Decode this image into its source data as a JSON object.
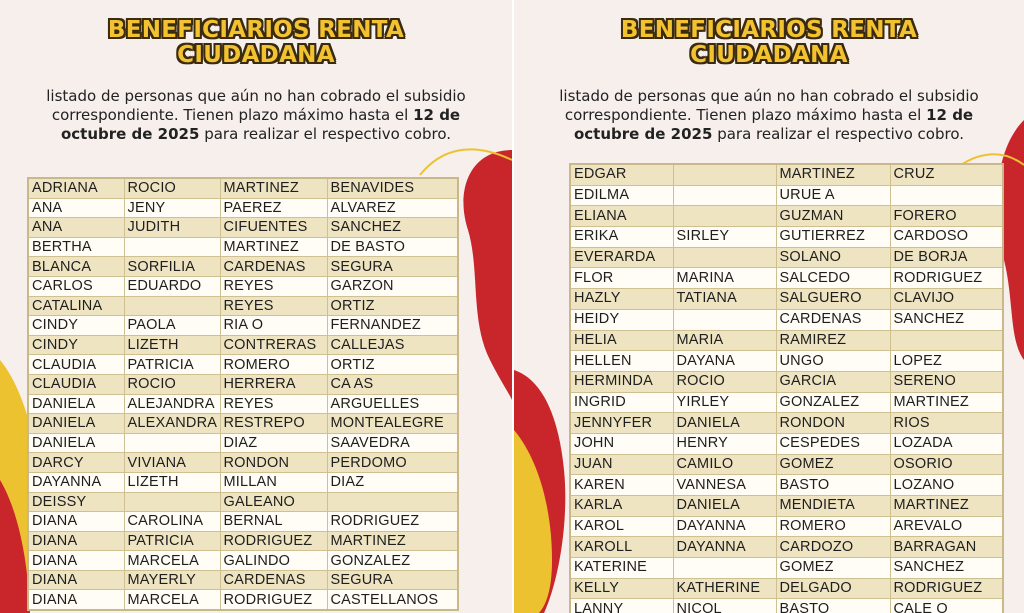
{
  "left_panel": {
    "title_line1": "BENEFICIARIOS RENTA",
    "title_line2": "CIUDADANA",
    "subtitle_pre": "listado de personas que aún no han cobrado el subsidio correspondiente. Tienen plazo máximo hasta el ",
    "subtitle_bold": "12 de octubre de 2025",
    "subtitle_post": " para realizar el respectivo cobro.",
    "rows": [
      [
        "ADRIANA",
        "ROCIO",
        "MARTINEZ",
        "BENAVIDES"
      ],
      [
        "ANA",
        "JENY",
        "PAEREZ",
        "ALVAREZ"
      ],
      [
        "ANA",
        "JUDITH",
        "CIFUENTES",
        "SANCHEZ"
      ],
      [
        "BERTHA",
        "",
        "MARTINEZ",
        "DE BASTO"
      ],
      [
        "BLANCA",
        "SORFILIA",
        "CARDENAS",
        "SEGURA"
      ],
      [
        "CARLOS",
        "EDUARDO",
        "REYES",
        "GARZON"
      ],
      [
        "CATALINA",
        "",
        "REYES",
        "ORTIZ"
      ],
      [
        "CINDY",
        "PAOLA",
        "RIA O",
        "FERNANDEZ"
      ],
      [
        "CINDY",
        "LIZETH",
        "CONTRERAS",
        "CALLEJAS"
      ],
      [
        "CLAUDIA",
        "PATRICIA",
        "ROMERO",
        "ORTIZ"
      ],
      [
        "CLAUDIA",
        "ROCIO",
        "HERRERA",
        "CA AS"
      ],
      [
        "DANIELA",
        "ALEJANDRA",
        "REYES",
        "ARGUELLES"
      ],
      [
        "DANIELA",
        "ALEXANDRA",
        "RESTREPO",
        "MONTEALEGRE"
      ],
      [
        "DANIELA",
        "",
        "DIAZ",
        "SAAVEDRA"
      ],
      [
        "DARCY",
        "VIVIANA",
        "RONDON",
        "PERDOMO"
      ],
      [
        "DAYANNA",
        "LIZETH",
        "MILLAN",
        "DIAZ"
      ],
      [
        "DEISSY",
        "",
        "GALEANO",
        ""
      ],
      [
        "DIANA",
        "CAROLINA",
        "BERNAL",
        "RODRIGUEZ"
      ],
      [
        "DIANA",
        "PATRICIA",
        "RODRIGUEZ",
        "MARTINEZ"
      ],
      [
        "DIANA",
        "MARCELA",
        "GALINDO",
        "GONZALEZ"
      ],
      [
        "DIANA",
        "MAYERLY",
        "CARDENAS",
        "SEGURA"
      ],
      [
        "DIANA",
        "MARCELA",
        "RODRIGUEZ",
        "CASTELLANOS"
      ]
    ]
  },
  "right_panel": {
    "title_line1": "BENEFICIARIOS RENTA",
    "title_line2": "CIUDADANA",
    "subtitle_pre": "listado de personas que aún no han cobrado el subsidio correspondiente. Tienen plazo máximo hasta el ",
    "subtitle_bold": "12 de octubre de 2025",
    "subtitle_post": " para realizar el respectivo cobro.",
    "rows": [
      [
        "EDGAR",
        "",
        "MARTINEZ",
        "CRUZ"
      ],
      [
        "EDILMA",
        "",
        "URUE A",
        ""
      ],
      [
        "ELIANA",
        "",
        "GUZMAN",
        "FORERO"
      ],
      [
        "ERIKA",
        "SIRLEY",
        "GUTIERREZ",
        "CARDOSO"
      ],
      [
        "EVERARDA",
        "",
        "SOLANO",
        "DE BORJA"
      ],
      [
        "FLOR",
        "MARINA",
        "SALCEDO",
        "RODRIGUEZ"
      ],
      [
        "HAZLY",
        "TATIANA",
        "SALGUERO",
        "CLAVIJO"
      ],
      [
        "HEIDY",
        "",
        "CARDENAS",
        "SANCHEZ"
      ],
      [
        "HELIA",
        "MARIA",
        "RAMIREZ",
        ""
      ],
      [
        "HELLEN",
        "DAYANA",
        "UNGO",
        "LOPEZ"
      ],
      [
        "HERMINDA",
        "ROCIO",
        "GARCIA",
        "SERENO"
      ],
      [
        "INGRID",
        "YIRLEY",
        "GONZALEZ",
        "MARTINEZ"
      ],
      [
        "JENNYFER",
        "DANIELA",
        "RONDON",
        "RIOS"
      ],
      [
        "JOHN",
        "HENRY",
        "CESPEDES",
        "LOZADA"
      ],
      [
        "JUAN",
        "CAMILO",
        "GOMEZ",
        "OSORIO"
      ],
      [
        "KAREN",
        "VANNESA",
        "BASTO",
        "LOZANO"
      ],
      [
        "KARLA",
        "DANIELA",
        "MENDIETA",
        "MARTINEZ"
      ],
      [
        "KAROL",
        "DAYANNA",
        "ROMERO",
        "AREVALO"
      ],
      [
        "KAROLL",
        "DAYANNA",
        "CARDOZO",
        "BARRAGAN"
      ],
      [
        "KATERINE",
        "",
        "GOMEZ",
        "SANCHEZ"
      ],
      [
        "KELLY",
        "KATHERINE",
        "DELGADO",
        "RODRIGUEZ"
      ],
      [
        "LANNY",
        "NICOL",
        "BASTO",
        "CALE O"
      ]
    ]
  },
  "colors": {
    "title_fill": "#f2c230",
    "title_outline": "#3a2a10",
    "background": "#f6efec",
    "row_odd": "#efe4c2",
    "row_even": "#fffdf6",
    "grid": "#cfc091",
    "deco_red": "#c8262b",
    "deco_yellow": "#ecc231"
  }
}
